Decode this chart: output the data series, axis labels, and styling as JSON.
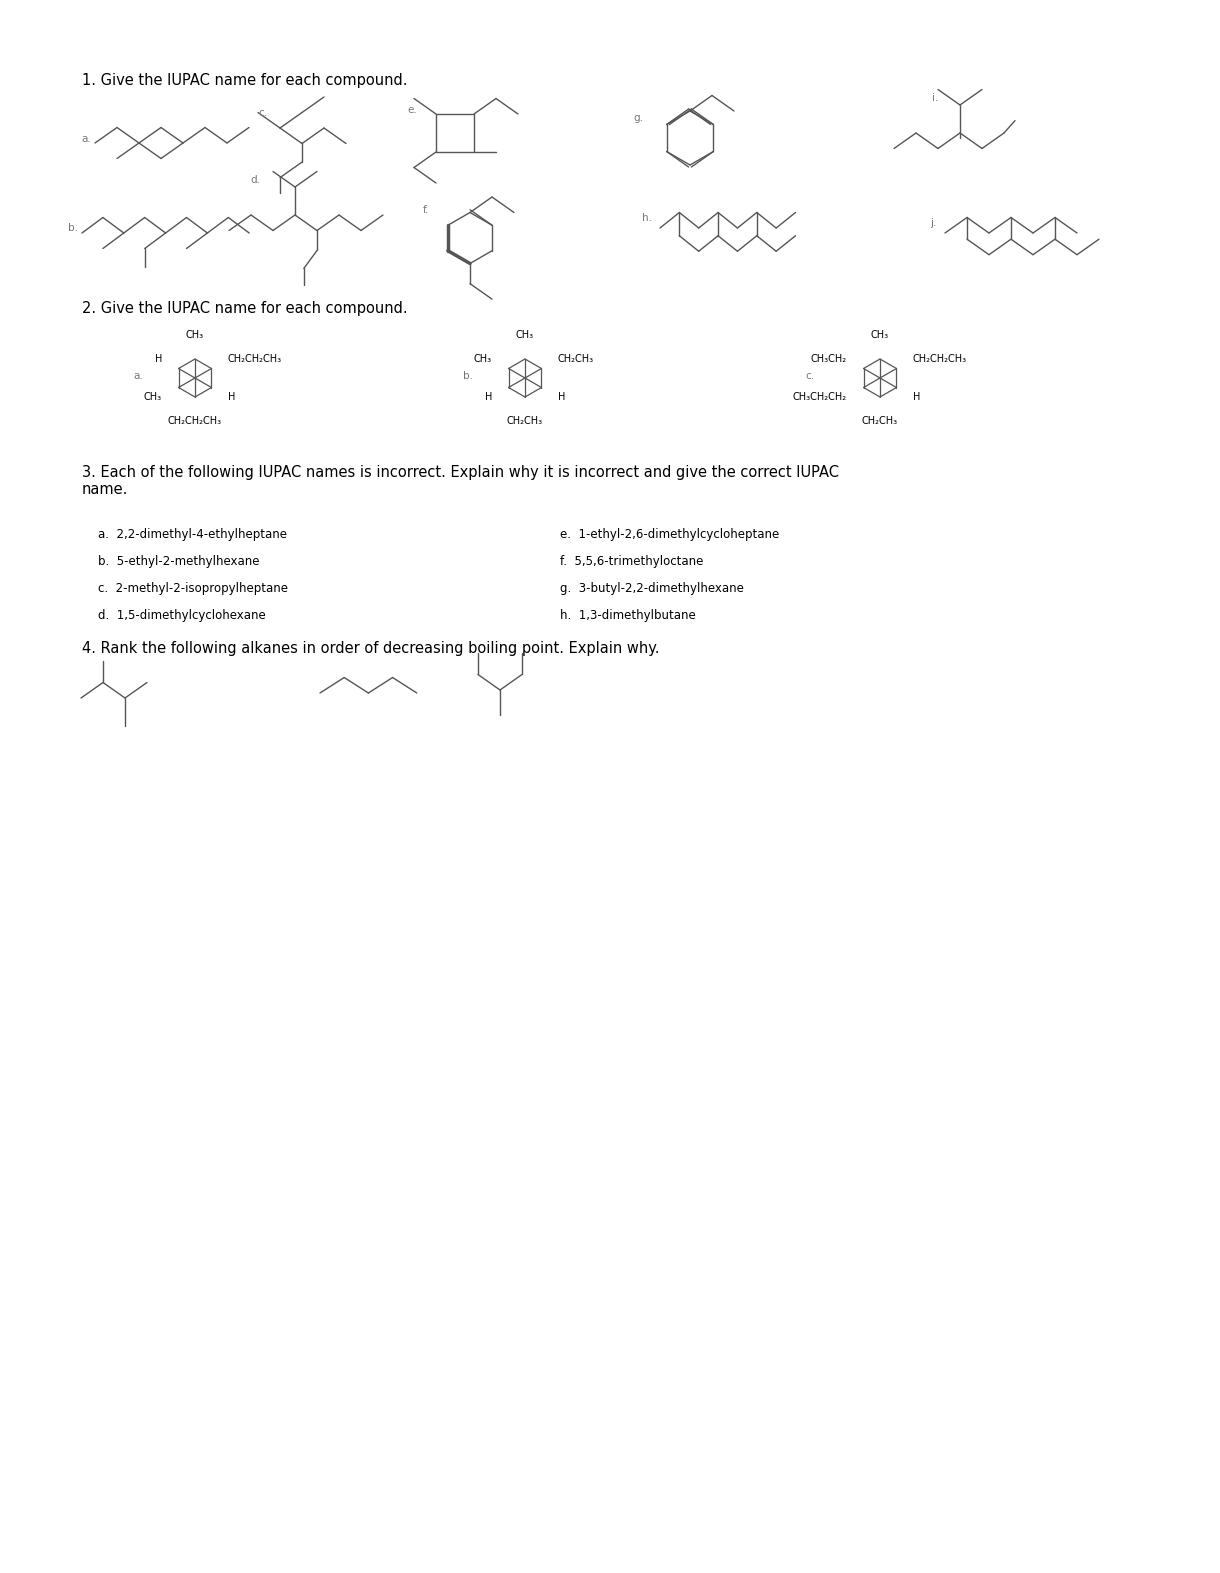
{
  "title1": "1. Give the IUPAC name for each compound.",
  "title2": "2. Give the IUPAC name for each compound.",
  "title3": "3. Each of the following IUPAC names is incorrect. Explain why it is incorrect and give the correct IUPAC\nname.",
  "title4": "4. Rank the following alkanes in order of decreasing boiling point. Explain why.",
  "sec3_col1": [
    "a.  2,2-dimethyl-4-ethylheptane",
    "b.  5-ethyl-2-methylhexane",
    "c.  2-methyl-2-isopropylheptane",
    "d.  1,5-dimethylcyclohexane"
  ],
  "sec3_col2": [
    "e.  1-ethyl-2,6-dimethylcycloheptane",
    "f.  5,5,6-trimethyloctane",
    "g.  3-butyl-2,2-dimethylhexane",
    "h.  1,3-dimethylbutane"
  ],
  "bg_color": "#ffffff",
  "text_color": "#000000",
  "line_color": "#555555",
  "label_color": "#777777",
  "fig_width": 12.0,
  "fig_height": 15.53,
  "title_fs": 10.5,
  "body_fs": 8.5,
  "label_fs": 7.5,
  "struct_lw": 1.0
}
